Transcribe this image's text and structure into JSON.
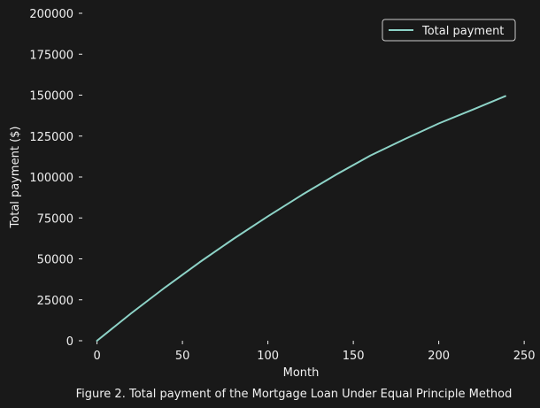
{
  "chart_data": {
    "type": "line",
    "title": "",
    "caption": "Figure 2. Total payment of the Mortgage Loan Under Equal Principle Method",
    "xlabel": "Month",
    "ylabel": "Total payment ($)",
    "xlim": [
      -6,
      252
    ],
    "ylim": [
      0,
      200000
    ],
    "xticks": [
      0,
      50,
      100,
      150,
      200,
      250
    ],
    "yticks": [
      0,
      25000,
      50000,
      75000,
      100000,
      125000,
      150000,
      175000,
      200000
    ],
    "grid": false,
    "legend_position": "top-right",
    "series": [
      {
        "name": "Total payment",
        "color": "#8dd3c7",
        "x": [
          0,
          20,
          40,
          60,
          80,
          100,
          120,
          140,
          160,
          180,
          200,
          220,
          239
        ],
        "y": [
          0,
          16750,
          32700,
          47900,
          62300,
          76000,
          89100,
          101500,
          113100,
          123100,
          132700,
          141200,
          149400
        ]
      }
    ]
  }
}
